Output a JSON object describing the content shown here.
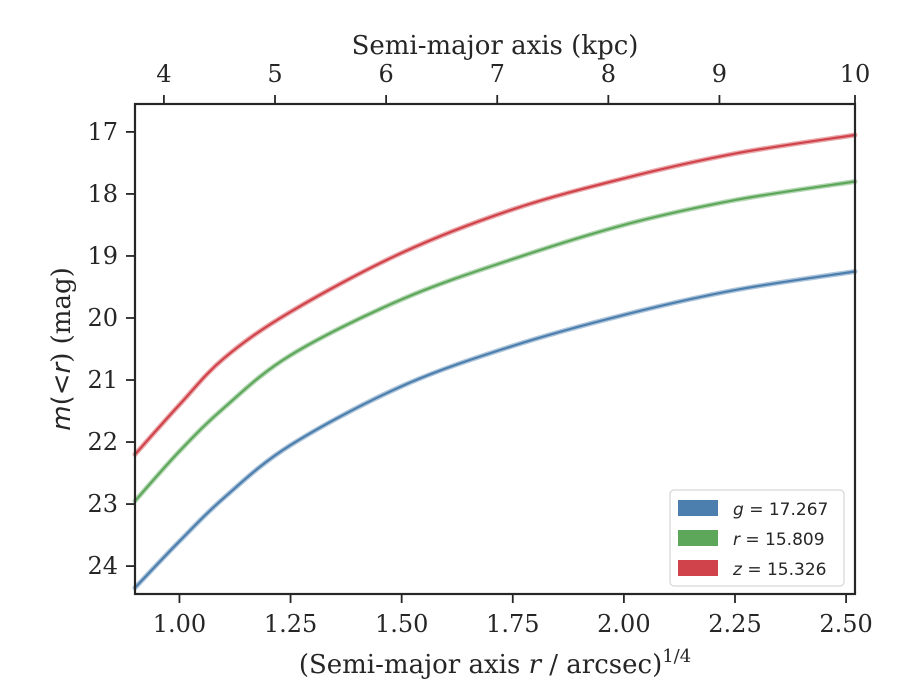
{
  "chart_data": {
    "type": "line",
    "xlabel_prefix": "(Semi-major axis ",
    "xlabel_var": "r",
    "xlabel_mid": " / arcsec)",
    "xlabel_sup": "1/4",
    "ylabel_m": "m",
    "ylabel_mid": "(<",
    "ylabel_r": "r",
    "ylabel_end": ") (mag)",
    "top_xlabel": "Semi-major axis (kpc)",
    "xlim": [
      0.9,
      2.52
    ],
    "ylim": [
      24.45,
      16.55
    ],
    "x_ticks": [
      1.0,
      1.25,
      1.5,
      1.75,
      2.0,
      2.25,
      2.5
    ],
    "x_tick_labels": [
      "1.00",
      "1.25",
      "1.50",
      "1.75",
      "2.00",
      "2.25",
      "2.50"
    ],
    "y_ticks": [
      17,
      18,
      19,
      20,
      21,
      22,
      23,
      24
    ],
    "y_tick_labels": [
      "17",
      "18",
      "19",
      "20",
      "21",
      "22",
      "23",
      "24"
    ],
    "top_ticks": [
      4,
      5,
      6,
      7,
      8,
      9,
      10
    ],
    "top_tick_labels": [
      "4",
      "5",
      "6",
      "7",
      "8",
      "9",
      "10"
    ],
    "legend_position": "lower-right",
    "series": [
      {
        "name_var": "g",
        "name_value": "= 17.267",
        "color": "#4c7fae",
        "x": [
          0.9,
          1.0,
          1.1,
          1.25,
          1.5,
          1.75,
          2.0,
          2.25,
          2.52
        ],
        "y": [
          24.35,
          23.6,
          22.9,
          22.05,
          21.1,
          20.45,
          19.95,
          19.55,
          19.25
        ]
      },
      {
        "name_var": "r",
        "name_value": "= 15.809",
        "color": "#5da75a",
        "x": [
          0.9,
          1.0,
          1.1,
          1.25,
          1.5,
          1.75,
          2.0,
          2.25,
          2.52
        ],
        "y": [
          22.95,
          22.15,
          21.45,
          20.6,
          19.7,
          19.05,
          18.5,
          18.1,
          17.8
        ]
      },
      {
        "name_var": "z",
        "name_value": "= 15.326",
        "color": "#d0434a",
        "x": [
          0.9,
          1.0,
          1.1,
          1.25,
          1.5,
          1.75,
          2.0,
          2.25,
          2.52
        ],
        "y": [
          22.2,
          21.4,
          20.65,
          19.9,
          18.95,
          18.25,
          17.75,
          17.35,
          17.05
        ]
      }
    ]
  }
}
